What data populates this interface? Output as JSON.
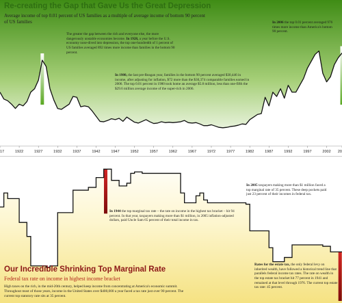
{
  "top_panel": {
    "title": "Re-creating the Gap that Gave Us the Great Depression",
    "subtitle": "Average income of top 0.01 percent of US families as a multiple of average income of bottom 90 percent of US families",
    "annotation_1928_lead": "The greater the gap between the rich and everyone else, the more dangerously unstable economies become.",
    "annotation_1928_year": "In 1928,",
    "annotation_1928_rest": "a year before the U.S. economy nose-dived into depression, the top one-hundredth of 1 percent of US families averaged 892 times more income than families in the bottom 90 percent.",
    "annotation_1980_year": "In 1980,",
    "annotation_1980_rest": "the last pre-Reagan year, families in the bottom 90 percent averaged $30,446 in income, after adjusting for inflation, $72 more than the $30,374 comparable families earned in 2006. The top 0.01 percent in 1980 took home an average $5.8 million, less than one-fifth the $29.6 million average income of the super-rich in 2006.",
    "annotation_2006_year": "In 2006",
    "annotation_2006_rest": "the top 0.01 percent averaged 976 times more income than America's bottom 90 percent."
  },
  "bottom_panel": {
    "title": "Our Incredible Shrinking Top Marginal Rate",
    "subtitle": "Federal tax rate on income in highest income bracket",
    "annotation_1944_year": "In 1944",
    "annotation_1944_rest": "the top marginal tax rate – the rate on income in the highest tax bracket – hit 94 percent. In that year, taxpayers making more than $1 million, in 2005 inflation-adjusted dollars, paid Uncle Sam 65 percent of their total income in tax.",
    "annotation_2005_year": "In 2005",
    "annotation_2005_rest": "taxpayers making more than $1 million faced a top marginal rate of 35 percent. These deep pockets paid just 23 percent of their incomes in federal tax.",
    "footer_text": "High taxes on the rich, in the mid-20th century, helped keep income from concentrating at America's economic summit. Throughout most of those years, income in the United States over $400,000 a year faced a tax rate just over 90 percent. The current top statutory rate sits at 35 percent.",
    "estate_heading": "Rates for the estate tax,",
    "estate_rest": "the only federal levy on inherited wealth, have followed a historical trend line that parallels federal income tax rates. The rate on wealth in the top estate tax bracket hit 77 percent in 1941 and remained at that level through 1976. The current top estate tax rate: 45 percent."
  },
  "chart_data": [
    {
      "type": "area",
      "title": "Re-creating the Gap that Gave Us the Great Depression",
      "subtitle": "Average income of top 0.01 percent of US families as a multiple of average income of bottom 90 percent of US families",
      "x": [
        1917,
        1918,
        1919,
        1920,
        1921,
        1922,
        1923,
        1924,
        1925,
        1926,
        1927,
        1928,
        1929,
        1930,
        1931,
        1932,
        1933,
        1934,
        1935,
        1936,
        1937,
        1938,
        1939,
        1940,
        1941,
        1942,
        1943,
        1944,
        1945,
        1946,
        1947,
        1948,
        1949,
        1950,
        1951,
        1952,
        1953,
        1954,
        1955,
        1956,
        1957,
        1958,
        1959,
        1960,
        1961,
        1962,
        1963,
        1964,
        1965,
        1966,
        1967,
        1968,
        1969,
        1970,
        1971,
        1972,
        1973,
        1974,
        1975,
        1976,
        1977,
        1978,
        1979,
        1980,
        1981,
        1982,
        1983,
        1984,
        1985,
        1986,
        1987,
        1988,
        1989,
        1990,
        1991,
        1992,
        1993,
        1994,
        1995,
        1996,
        1997,
        1998,
        1999,
        2000,
        2001,
        2002,
        2003,
        2004,
        2005,
        2006
      ],
      "values": [
        520,
        440,
        420,
        380,
        330,
        380,
        360,
        410,
        520,
        560,
        660,
        892,
        820,
        560,
        430,
        330,
        320,
        350,
        380,
        470,
        460,
        350,
        360,
        350,
        300,
        240,
        180,
        175,
        190,
        210,
        200,
        215,
        180,
        230,
        200,
        170,
        160,
        180,
        200,
        175,
        155,
        160,
        175,
        165,
        170,
        165,
        170,
        175,
        190,
        165,
        160,
        165,
        150,
        130,
        130,
        140,
        125,
        110,
        105,
        110,
        120,
        125,
        135,
        150,
        145,
        200,
        230,
        260,
        270,
        460,
        360,
        520,
        470,
        560,
        450,
        600,
        520,
        520,
        600,
        680,
        800,
        880,
        960,
        1000,
        740,
        640,
        700,
        840,
        920,
        976
      ],
      "highlights": [
        1928,
        1980,
        2006
      ],
      "xticks": [
        "1917",
        "1922",
        "1927",
        "1932",
        "1937",
        "1942",
        "1947",
        "1952",
        "1957",
        "1962",
        "1967",
        "1972",
        "1977",
        "1982",
        "1987",
        "1992",
        "1997",
        "2002",
        "2006"
      ],
      "xlim": [
        1917,
        2006
      ],
      "ylim": [
        0,
        1100
      ],
      "grid": false,
      "colors": {
        "fill_top": "#4f9a1d",
        "fill_bottom": "#ffffff",
        "line": "#111111",
        "highlight": "#6cb82e"
      }
    },
    {
      "type": "line",
      "title": "Our Incredible Shrinking Top Marginal Rate",
      "subtitle": "Federal tax rate on income in highest income bracket",
      "x": [
        1917,
        1918,
        1919,
        1920,
        1921,
        1922,
        1923,
        1924,
        1925,
        1926,
        1927,
        1928,
        1929,
        1930,
        1931,
        1932,
        1933,
        1934,
        1935,
        1936,
        1937,
        1938,
        1939,
        1940,
        1941,
        1942,
        1943,
        1944,
        1945,
        1946,
        1947,
        1948,
        1949,
        1950,
        1951,
        1952,
        1953,
        1954,
        1955,
        1956,
        1957,
        1958,
        1959,
        1960,
        1961,
        1962,
        1963,
        1964,
        1965,
        1966,
        1967,
        1968,
        1969,
        1970,
        1971,
        1972,
        1973,
        1974,
        1975,
        1976,
        1977,
        1978,
        1979,
        1980,
        1981,
        1982,
        1983,
        1984,
        1985,
        1986,
        1987,
        1988,
        1989,
        1990,
        1991,
        1992,
        1993,
        1994,
        1995,
        1996,
        1997,
        1998,
        1999,
        2000,
        2001,
        2002,
        2003,
        2004,
        2005,
        2006
      ],
      "values": [
        67,
        77,
        73,
        73,
        73,
        56,
        56,
        46,
        25,
        25,
        25,
        25,
        24,
        25,
        25,
        63,
        63,
        63,
        63,
        79,
        79,
        79,
        79,
        81,
        81,
        88,
        88,
        94,
        94,
        86,
        86,
        82,
        82,
        84,
        91,
        92,
        92,
        91,
        91,
        91,
        91,
        91,
        91,
        91,
        91,
        91,
        91,
        77,
        70,
        70,
        70,
        75,
        77,
        72,
        70,
        70,
        70,
        70,
        70,
        70,
        70,
        70,
        70,
        70,
        69,
        50,
        50,
        50,
        50,
        50,
        38,
        28,
        28,
        28,
        31,
        31,
        40,
        40,
        40,
        40,
        40,
        40,
        40,
        40,
        39,
        39,
        35,
        35,
        35,
        35
      ],
      "highlights": [
        1944,
        2005
      ],
      "ylim": [
        0,
        100
      ],
      "grid": false,
      "colors": {
        "fill_top": "#ffffff",
        "fill_bottom": "#f7e89a",
        "line": "#111111",
        "highlight": "#b1151a"
      }
    }
  ]
}
